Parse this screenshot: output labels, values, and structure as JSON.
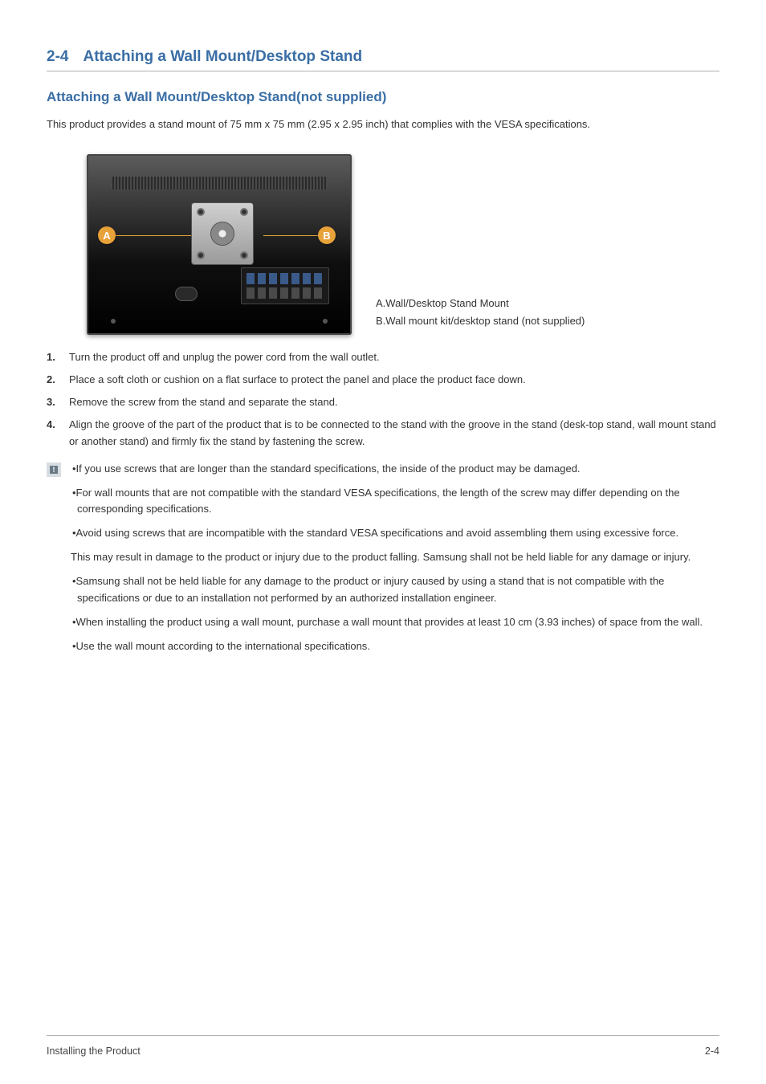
{
  "colors": {
    "heading": "#3a6ea5",
    "text": "#333333",
    "rule": "#b0b0b0",
    "callout": "#e8a23a",
    "background": "#ffffff"
  },
  "typography": {
    "heading_fontsize_pt": 14,
    "subheading_fontsize_pt": 13,
    "body_fontsize_pt": 10,
    "font_family": "Arial"
  },
  "header": {
    "number": "2-4",
    "title": "Attaching a Wall Mount/Desktop Stand"
  },
  "subheader": "Attaching a Wall Mount/Desktop Stand(not supplied)",
  "intro": "This product provides a stand mount of 75 mm x 75 mm (2.95 x 2.95 inch) that complies with the VESA specifications.",
  "figure": {
    "callouts": {
      "A": "A",
      "B": "B"
    },
    "legend": {
      "A": "A.Wall/Desktop Stand Mount",
      "B": "B.Wall mount kit/desktop stand (not supplied)"
    }
  },
  "steps": [
    "Turn the product off and unplug the power cord from the wall outlet.",
    "Place a soft cloth or cushion on a flat surface to protect the panel and place the product face down.",
    "Remove the screw from the stand and separate the stand.",
    "Align the groove of the part of the product that is to be connected to the stand with the groove in the stand (desk-top stand, wall mount stand or another stand) and firmly fix the stand by fastening the screw."
  ],
  "caution": [
    "•If you use screws that are longer than the standard specifications, the inside of the product may be damaged.",
    "•For wall mounts that are not compatible with the standard VESA specifications, the length of the screw may differ depending on the corresponding specifications.",
    "•Avoid using screws that are incompatible with the standard VESA specifications and avoid assembling them using excessive force.",
    "This may result in damage to the product or injury due to the product falling. Samsung shall not be held liable for any damage or injury.",
    "•Samsung shall not be held liable for any damage to the product or injury caused by using a stand that is not compatible with the specifications or due to an installation not performed by an authorized installation engineer.",
    "•When installing the product using a wall mount, purchase a wall mount that provides at least 10 cm (3.93 inches) of space from the wall.",
    "•Use the wall mount according to the international specifications."
  ],
  "footer": {
    "left": "Installing the Product",
    "right": "2-4"
  }
}
